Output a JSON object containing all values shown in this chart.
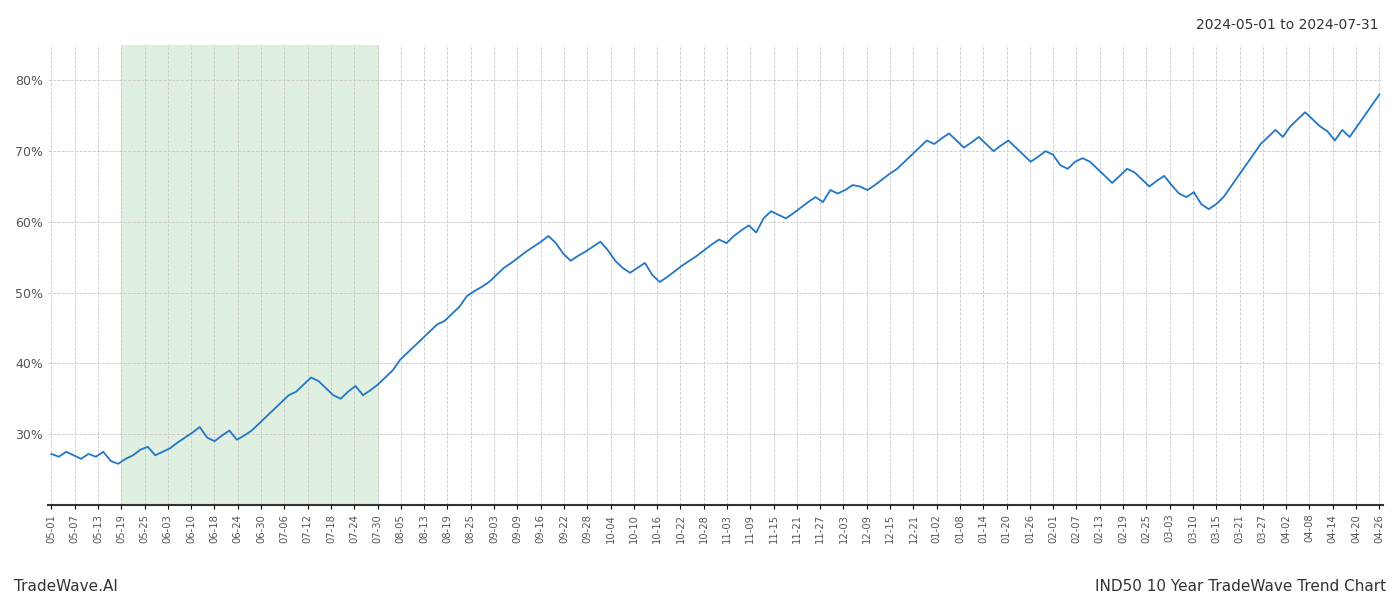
{
  "title_top_right": "2024-05-01 to 2024-07-31",
  "footer_left": "TradeWave.AI",
  "footer_right": "IND50 10 Year TradeWave Trend Chart",
  "line_color": "#2176c7",
  "line_width": 1.3,
  "shade_color": "#d4ead4",
  "shade_alpha": 0.7,
  "background_color": "#ffffff",
  "grid_color": "#c8c8c8",
  "ylim_min": 20,
  "ylim_max": 85,
  "yticks": [
    30,
    40,
    50,
    60,
    70,
    80
  ],
  "x_tick_labels": [
    "05-01",
    "05-07",
    "05-13",
    "05-19",
    "05-25",
    "06-03",
    "06-10",
    "06-18",
    "06-24",
    "06-30",
    "07-06",
    "07-12",
    "07-18",
    "07-24",
    "07-30",
    "08-05",
    "08-13",
    "08-19",
    "08-25",
    "09-03",
    "09-09",
    "09-16",
    "09-22",
    "09-28",
    "10-04",
    "10-10",
    "10-16",
    "10-22",
    "10-28",
    "11-03",
    "11-09",
    "11-15",
    "11-21",
    "11-27",
    "12-03",
    "12-09",
    "12-15",
    "12-21",
    "01-02",
    "01-08",
    "01-14",
    "01-20",
    "01-26",
    "02-01",
    "02-07",
    "02-13",
    "02-19",
    "02-25",
    "03-03",
    "03-10",
    "03-15",
    "03-21",
    "03-27",
    "04-02",
    "04-08",
    "04-14",
    "04-20",
    "04-26"
  ],
  "values": [
    27.2,
    26.8,
    27.5,
    27.0,
    26.5,
    27.2,
    26.8,
    27.5,
    26.2,
    25.8,
    26.5,
    27.0,
    27.8,
    28.2,
    27.0,
    27.5,
    28.0,
    28.8,
    29.5,
    30.2,
    31.0,
    29.5,
    29.0,
    29.8,
    30.5,
    29.2,
    29.8,
    30.5,
    31.5,
    32.5,
    33.5,
    34.5,
    35.5,
    36.0,
    37.0,
    38.0,
    37.5,
    36.5,
    35.5,
    35.0,
    36.0,
    36.8,
    35.5,
    36.2,
    37.0,
    38.0,
    39.0,
    40.5,
    41.5,
    42.5,
    43.5,
    44.5,
    45.5,
    46.0,
    47.0,
    48.0,
    49.5,
    50.2,
    50.8,
    51.5,
    52.5,
    53.5,
    54.2,
    55.0,
    55.8,
    56.5,
    57.2,
    58.0,
    57.0,
    55.5,
    54.5,
    55.2,
    55.8,
    56.5,
    57.2,
    56.0,
    54.5,
    53.5,
    52.8,
    53.5,
    54.2,
    52.5,
    51.5,
    52.2,
    53.0,
    53.8,
    54.5,
    55.2,
    56.0,
    56.8,
    57.5,
    57.0,
    58.0,
    58.8,
    59.5,
    58.5,
    60.5,
    61.5,
    61.0,
    60.5,
    61.2,
    62.0,
    62.8,
    63.5,
    62.8,
    64.5,
    64.0,
    64.5,
    65.2,
    65.0,
    64.5,
    65.2,
    66.0,
    66.8,
    67.5,
    68.5,
    69.5,
    70.5,
    71.5,
    71.0,
    71.8,
    72.5,
    71.5,
    70.5,
    71.2,
    72.0,
    71.0,
    70.0,
    70.8,
    71.5,
    70.5,
    69.5,
    68.5,
    69.2,
    70.0,
    69.5,
    68.0,
    67.5,
    68.5,
    69.0,
    68.5,
    67.5,
    66.5,
    65.5,
    66.5,
    67.5,
    67.0,
    66.0,
    65.0,
    65.8,
    66.5,
    65.2,
    64.0,
    63.5,
    64.2,
    62.5,
    61.8,
    62.5,
    63.5,
    65.0,
    66.5,
    68.0,
    69.5,
    71.0,
    72.0,
    73.0,
    72.0,
    73.5,
    74.5,
    75.5,
    74.5,
    73.5,
    72.8,
    71.5,
    73.0,
    72.0,
    73.5,
    75.0,
    76.5,
    78.0
  ],
  "shade_start_label": "05-19",
  "shade_end_label": "07-30",
  "n_total_points": 190
}
